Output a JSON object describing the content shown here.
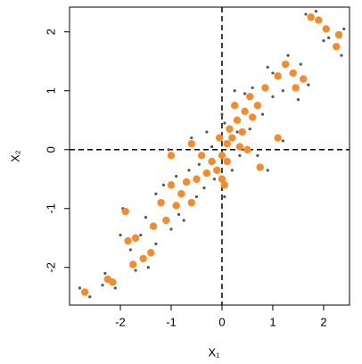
{
  "chart_data": {
    "type": "scatter",
    "x_label": "X₁",
    "y_label": "X₂",
    "xlim": [
      -3.0,
      2.51
    ],
    "ylim": [
      -2.64,
      2.42
    ],
    "xticks": [
      -2,
      -1,
      0,
      1,
      2
    ],
    "yticks": [
      -2,
      -1,
      0,
      1,
      2
    ],
    "hlines": [
      0
    ],
    "vlines": [
      0
    ],
    "series": [
      {
        "color": "#555555",
        "x": [
          -2.8,
          -2.6,
          -2.3,
          -2.1,
          -2.0,
          -1.8,
          -1.6,
          -1.45,
          -1.3,
          -1.95,
          -1.5,
          -1.3,
          -1.0,
          -0.85,
          -0.9,
          -0.65,
          -0.5,
          -0.35,
          -0.15,
          -0.2,
          0.05,
          0.2,
          0.3,
          0.05,
          0.45,
          0.6,
          0.8,
          0.9,
          0.7,
          -0.6,
          -1.05,
          1.2,
          1.0,
          1.3,
          1.55,
          1.5,
          1.7,
          1.65,
          1.85,
          2.1,
          2.35,
          2.4,
          0.9,
          0.25,
          -0.3,
          0.55,
          1.0,
          -1.15,
          -0.75,
          -1.7,
          -2.35,
          0.0,
          0.35,
          -0.45,
          1.2,
          2.0
        ],
        "values": [
          -2.35,
          -2.5,
          -2.1,
          -2.35,
          -1.45,
          -1.7,
          -1.45,
          -2.0,
          -1.6,
          -1.0,
          -1.15,
          -0.75,
          -1.35,
          -1.1,
          -0.45,
          -0.35,
          -0.8,
          -0.65,
          -0.5,
          0.05,
          -0.8,
          -0.35,
          0.3,
          0.45,
          0.95,
          1.05,
          0.6,
          -0.35,
          -0.1,
          0.2,
          0.0,
          0.15,
          1.3,
          1.6,
          1.45,
          0.85,
          1.1,
          2.3,
          2.35,
          1.9,
          1.6,
          2.05,
          1.4,
          1.0,
          0.3,
          0.35,
          0.9,
          -0.6,
          -1.2,
          -2.05,
          -2.3,
          0.6,
          -0.1,
          -0.25,
          1.0,
          1.85
        ]
      },
      {
        "color": "#f28c2f",
        "x": [
          -2.7,
          -2.25,
          -2.15,
          -1.85,
          -1.75,
          -1.7,
          -1.55,
          -1.4,
          -1.9,
          -1.35,
          -1.2,
          -1.1,
          -1.0,
          -0.9,
          -0.8,
          -0.7,
          -0.6,
          -0.5,
          -0.3,
          -0.2,
          -0.1,
          0.0,
          0.05,
          0.1,
          0.15,
          0.2,
          0.3,
          0.4,
          0.45,
          0.55,
          0.6,
          0.7,
          0.35,
          -0.05,
          0.25,
          0.75,
          -0.6,
          -1.0,
          1.1,
          0.85,
          1.1,
          1.25,
          1.4,
          1.45,
          1.6,
          1.75,
          1.9,
          2.05,
          2.25,
          2.3,
          0.0,
          -0.4,
          0.5,
          0.1
        ],
        "values": [
          -2.42,
          -2.2,
          -2.25,
          -1.55,
          -1.95,
          -1.5,
          -1.85,
          -1.75,
          -1.05,
          -1.3,
          -0.9,
          -1.2,
          -0.6,
          -0.95,
          -0.75,
          -0.55,
          -0.9,
          -0.5,
          -0.4,
          -0.2,
          -0.35,
          -0.1,
          -0.6,
          0.1,
          0.35,
          0.2,
          0.5,
          0.3,
          0.65,
          0.9,
          0.55,
          0.75,
          0.05,
          0.2,
          0.75,
          -0.3,
          0.1,
          -0.1,
          0.2,
          1.05,
          1.25,
          1.45,
          1.3,
          1.05,
          1.2,
          2.25,
          2.2,
          2.05,
          1.75,
          1.95,
          -0.5,
          -0.1,
          0.0,
          -0.2
        ]
      }
    ]
  }
}
